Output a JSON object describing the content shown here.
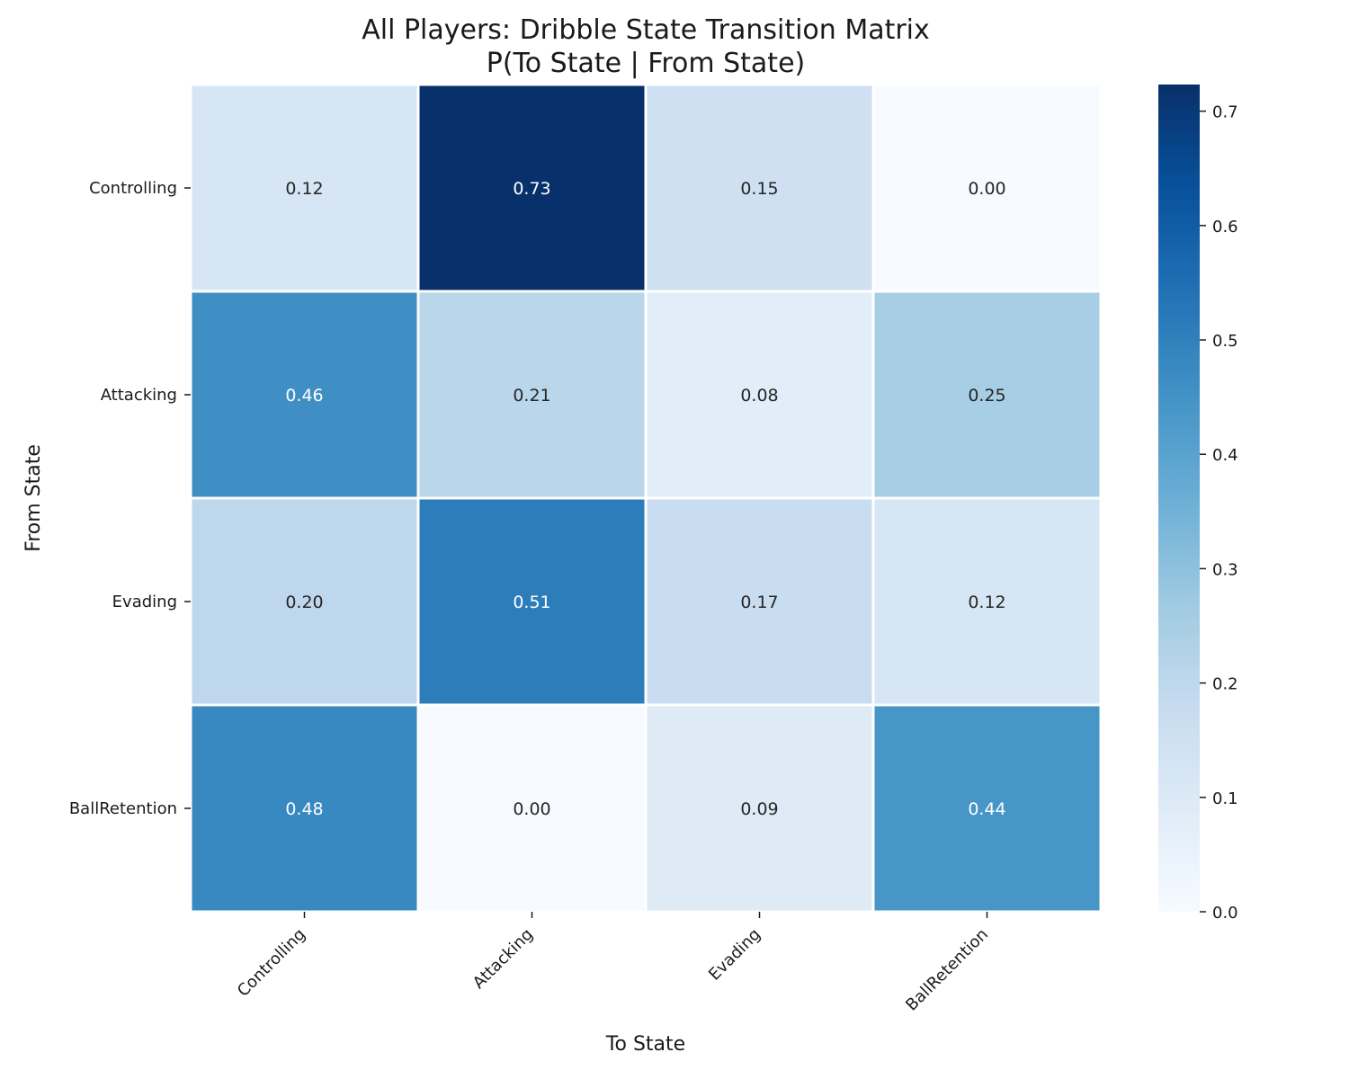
{
  "chart_data": {
    "type": "heatmap",
    "title": [
      "All Players: Dribble State Transition Matrix",
      "P(To State | From State)"
    ],
    "xlabel": "To State",
    "ylabel": "From State",
    "x_categories": [
      "Controlling",
      "Attacking",
      "Evading",
      "BallRetention"
    ],
    "y_categories": [
      "Controlling",
      "Attacking",
      "Evading",
      "BallRetention"
    ],
    "values": [
      [
        0.12,
        0.73,
        0.15,
        0.0
      ],
      [
        0.46,
        0.21,
        0.08,
        0.25
      ],
      [
        0.2,
        0.51,
        0.17,
        0.12
      ],
      [
        0.48,
        0.0,
        0.09,
        0.44
      ]
    ],
    "value_format": "0.00",
    "colormap": "Blues",
    "color_range": [
      0.0,
      0.7233
    ],
    "colorbar_ticks": [
      "0.0",
      "0.1",
      "0.2",
      "0.3",
      "0.4",
      "0.5",
      "0.6",
      "0.7"
    ],
    "colorbar_tick_values": [
      0.0,
      0.1,
      0.2,
      0.3,
      0.4,
      0.5,
      0.6,
      0.7
    ],
    "cell_border_color": "#ffffff"
  }
}
